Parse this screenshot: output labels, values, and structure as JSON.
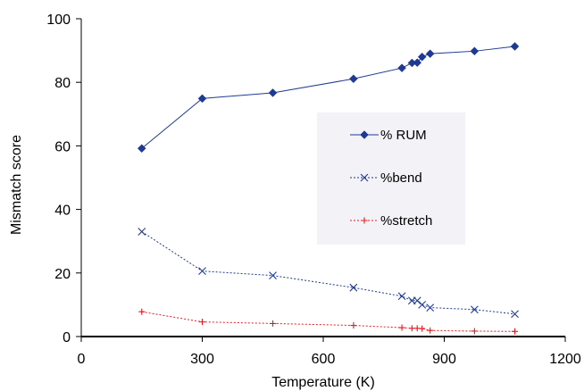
{
  "chart_data": {
    "type": "line",
    "xlabel": "Temperature (K)",
    "ylabel": "Mismatch score",
    "xlim": [
      0,
      1200
    ],
    "ylim": [
      0,
      100
    ],
    "x_ticks": [
      "0",
      "300",
      "600",
      "900",
      "1200"
    ],
    "y_ticks": [
      "0",
      "20",
      "40",
      "60",
      "80",
      "100"
    ],
    "grid": false,
    "legend_position": "center-right",
    "series": [
      {
        "name": "% RUM",
        "color": "#1F3A93",
        "line_style": "solid",
        "marker": "diamond",
        "points": [
          {
            "x": 150,
            "y": 59.2
          },
          {
            "x": 300,
            "y": 74.9
          },
          {
            "x": 475,
            "y": 76.7
          },
          {
            "x": 675,
            "y": 81.1
          },
          {
            "x": 795,
            "y": 84.5
          },
          {
            "x": 820,
            "y": 86.1
          },
          {
            "x": 833,
            "y": 86.2
          },
          {
            "x": 845,
            "y": 88.0
          },
          {
            "x": 865,
            "y": 89.0
          },
          {
            "x": 975,
            "y": 89.8
          },
          {
            "x": 1075,
            "y": 91.3
          }
        ]
      },
      {
        "name": "%bend",
        "color": "#1F3A93",
        "line_style": "dotted",
        "marker": "x",
        "points": [
          {
            "x": 150,
            "y": 33.0
          },
          {
            "x": 300,
            "y": 20.6
          },
          {
            "x": 475,
            "y": 19.2
          },
          {
            "x": 675,
            "y": 15.4
          },
          {
            "x": 795,
            "y": 12.7
          },
          {
            "x": 820,
            "y": 11.3
          },
          {
            "x": 833,
            "y": 11.3
          },
          {
            "x": 845,
            "y": 10.0
          },
          {
            "x": 865,
            "y": 9.1
          },
          {
            "x": 975,
            "y": 8.5
          },
          {
            "x": 1075,
            "y": 7.1
          }
        ]
      },
      {
        "name": "%stretch",
        "color": "#E8181E",
        "line_style": "dotted",
        "marker": "plus",
        "points": [
          {
            "x": 150,
            "y": 7.8
          },
          {
            "x": 300,
            "y": 4.6
          },
          {
            "x": 475,
            "y": 4.1
          },
          {
            "x": 675,
            "y": 3.5
          },
          {
            "x": 795,
            "y": 2.8
          },
          {
            "x": 820,
            "y": 2.6
          },
          {
            "x": 833,
            "y": 2.6
          },
          {
            "x": 845,
            "y": 2.5
          },
          {
            "x": 865,
            "y": 1.9
          },
          {
            "x": 975,
            "y": 1.7
          },
          {
            "x": 1075,
            "y": 1.6
          }
        ]
      }
    ]
  }
}
